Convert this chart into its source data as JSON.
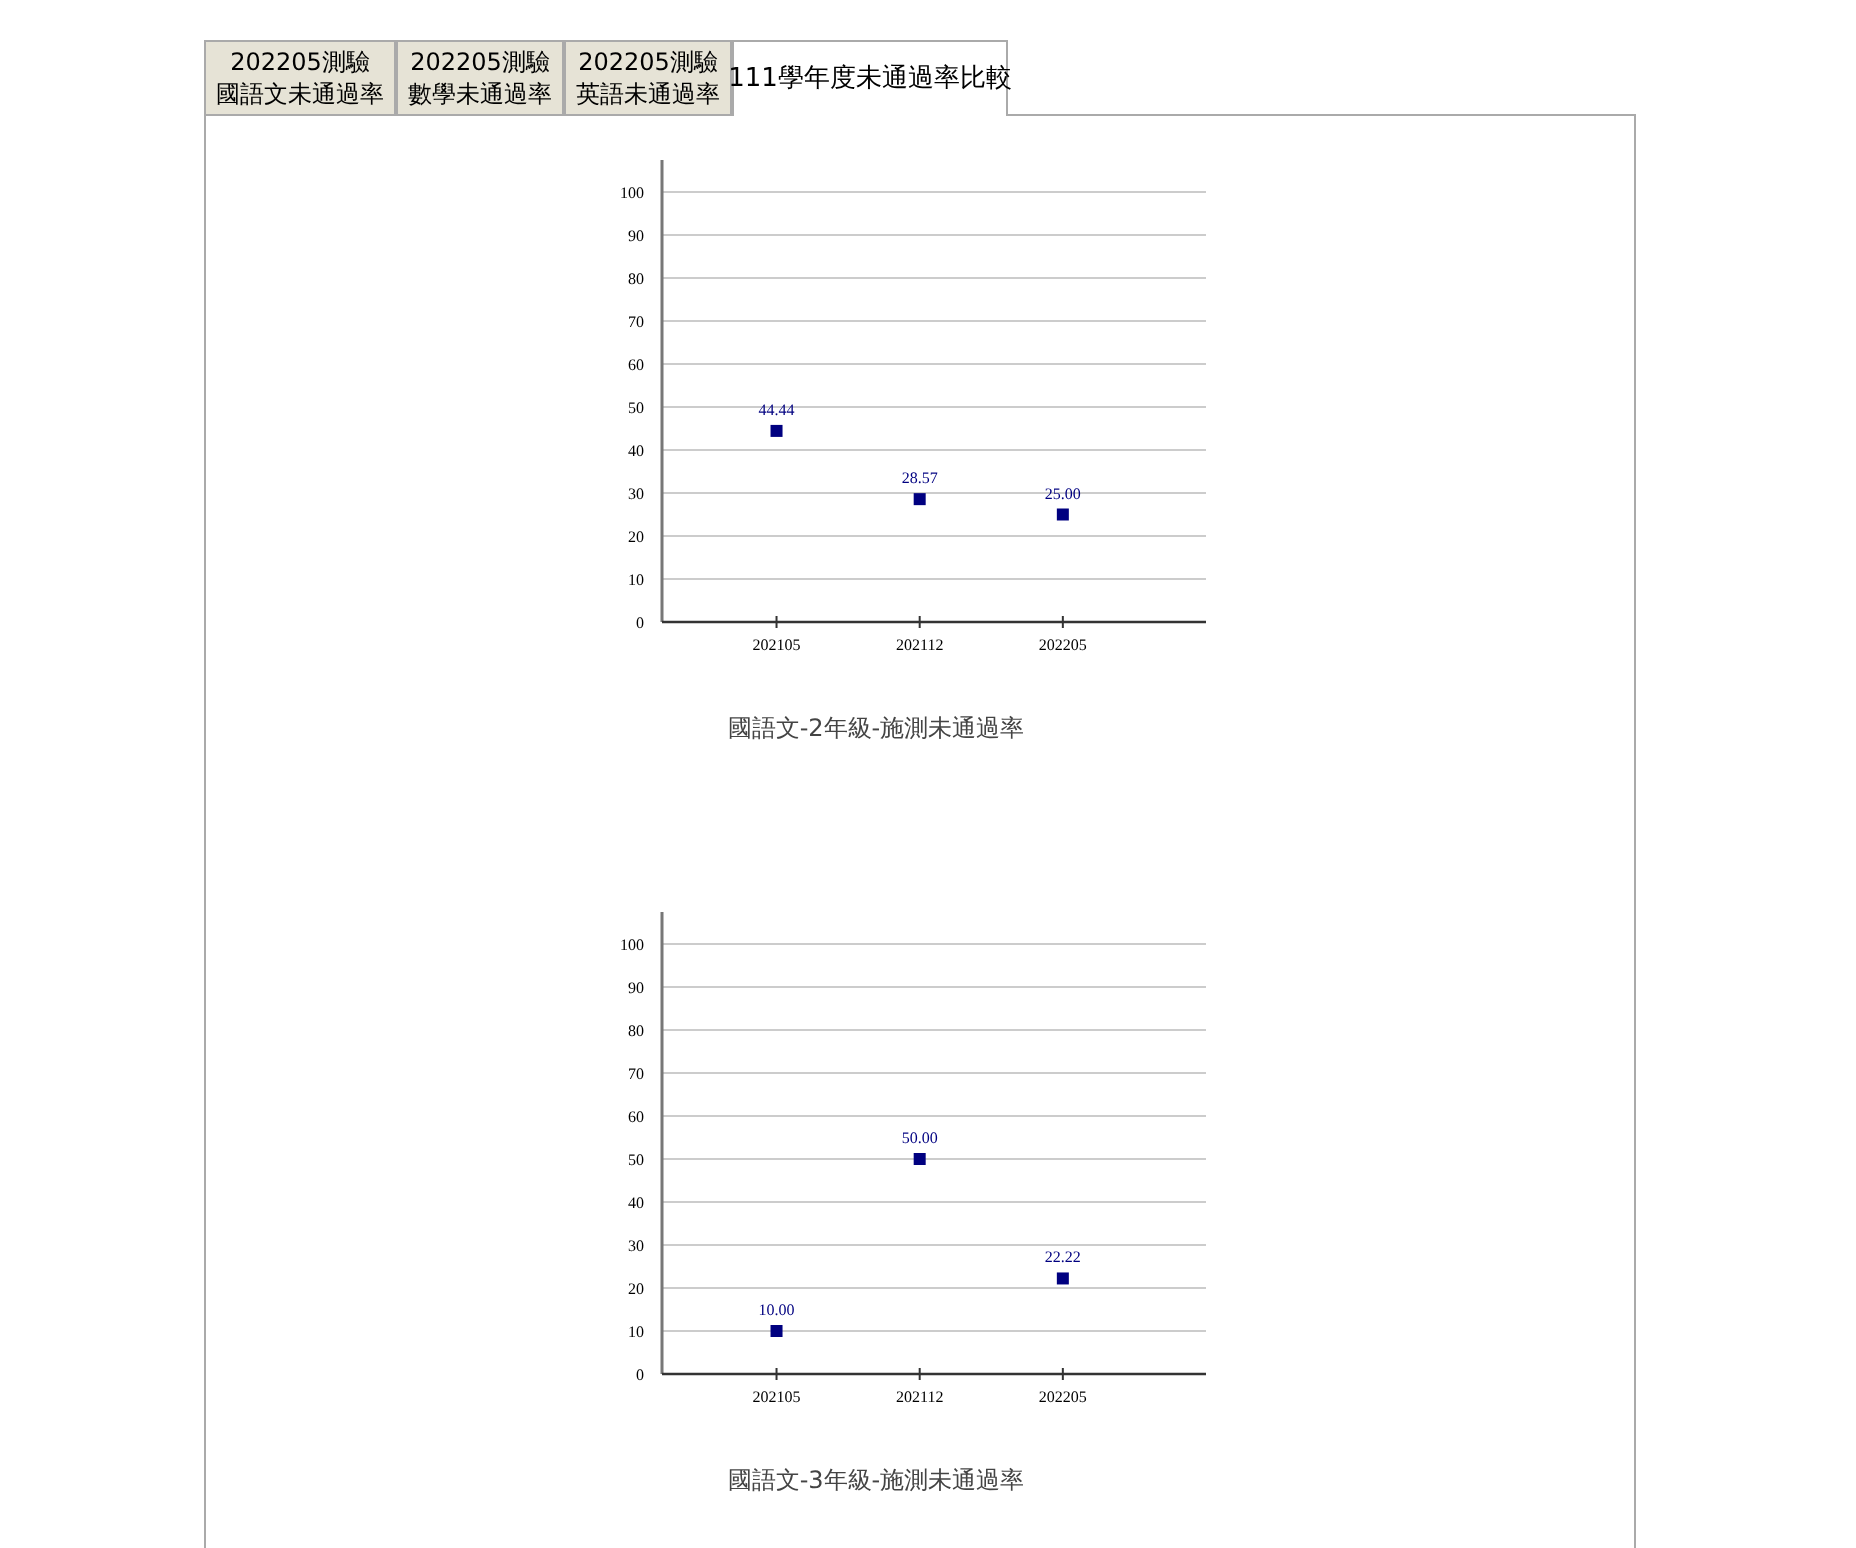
{
  "chart_data": [
    {
      "type": "other",
      "annotations": [
        "202205測驗國語文未通過率",
        "202205測驗數學未通過率",
        "202205測驗英語未通過率",
        "111學年度未通過率比較"
      ]
    },
    {
      "type": "scatter",
      "title": "國語文-2年級-施測未通過率",
      "categories": [
        "202105",
        "202112",
        "202205"
      ],
      "ylim": [
        0,
        100
      ],
      "yticks": [
        0,
        10,
        20,
        30,
        40,
        50,
        60,
        70,
        80,
        90,
        100
      ],
      "grid": "y",
      "marker": "square",
      "series": [
        {
          "color": "#000080",
          "values": [
            44.44,
            28.57,
            25.0
          ],
          "value_labels": [
            "44.44",
            "28.57",
            "25.00"
          ]
        }
      ]
    },
    {
      "type": "scatter",
      "title": "國語文-3年級-施測未通過率",
      "categories": [
        "202105",
        "202112",
        "202205"
      ],
      "ylim": [
        0,
        100
      ],
      "yticks": [
        0,
        10,
        20,
        30,
        40,
        50,
        60,
        70,
        80,
        90,
        100
      ],
      "grid": "y",
      "marker": "square",
      "series": [
        {
          "color": "#000080",
          "values": [
            10.0,
            50.0,
            22.22
          ],
          "value_labels": [
            "10.00",
            "50.00",
            "22.22"
          ]
        }
      ]
    }
  ]
}
